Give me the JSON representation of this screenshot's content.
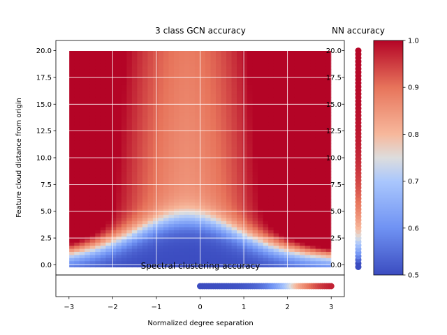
{
  "chart_data": [
    {
      "id": "main",
      "type": "heatmap",
      "title": "3 class GCN accuracy",
      "xlabel": "",
      "ylabel": "Feature cloud distance from origin",
      "xlim": [
        -3.3,
        3.3
      ],
      "ylim": [
        -0.95,
        20.95
      ],
      "x_range": [
        -3,
        3
      ],
      "y_range": [
        -0.2,
        20.0
      ],
      "xticks": [
        "−3",
        "−2",
        "−1",
        "0",
        "1",
        "2",
        "3"
      ],
      "yticks": [
        "0.0",
        "2.5",
        "5.0",
        "7.5",
        "10.0",
        "12.5",
        "15.0",
        "17.5",
        "20.0"
      ],
      "grid": true,
      "colormap": "coolwarm",
      "value_range": [
        0.5,
        1.0
      ],
      "description_values": {
        "low_distance_accuracy": 0.5,
        "center_high_distance_accuracy": 0.82,
        "edge_high_distance_accuracy": 0.98
      }
    },
    {
      "id": "nn",
      "type": "scatter",
      "title": "NN accuracy",
      "x": 0,
      "y_range": [
        -0.2,
        20.0
      ],
      "yticks": [
        "0.0",
        "2.5",
        "5.0",
        "7.5",
        "10.0",
        "12.5",
        "15.0",
        "17.5",
        "20.0"
      ],
      "accuracy_range": [
        0.5,
        1.0
      ]
    },
    {
      "id": "spectral",
      "type": "scatter",
      "title": "Spectral clustering accuracy",
      "xlabel": "Normalized degree separation",
      "x_range": [
        0,
        3
      ],
      "xticks": [
        "−3",
        "−2",
        "−1",
        "0",
        "1",
        "2",
        "3"
      ],
      "accuracy_range": [
        0.5,
        1.0
      ]
    },
    {
      "id": "colorbar",
      "type": "colorbar",
      "range": [
        0.5,
        1.0
      ],
      "ticks": [
        "0.5",
        "0.6",
        "0.7",
        "0.8",
        "0.9",
        "1.0"
      ],
      "colormap": "coolwarm"
    }
  ],
  "colors": {
    "cold": "#3b4cc0",
    "neutral": "#dddddd",
    "warm": "#b40426",
    "grid": "#ffffff"
  }
}
